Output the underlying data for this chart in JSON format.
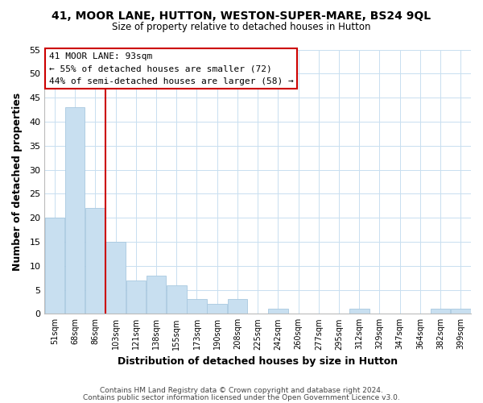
{
  "title": "41, MOOR LANE, HUTTON, WESTON-SUPER-MARE, BS24 9QL",
  "subtitle": "Size of property relative to detached houses in Hutton",
  "xlabel": "Distribution of detached houses by size in Hutton",
  "ylabel": "Number of detached properties",
  "bar_color": "#c8dff0",
  "bar_edge_color": "#a8c8e0",
  "categories": [
    "51sqm",
    "68sqm",
    "86sqm",
    "103sqm",
    "121sqm",
    "138sqm",
    "155sqm",
    "173sqm",
    "190sqm",
    "208sqm",
    "225sqm",
    "242sqm",
    "260sqm",
    "277sqm",
    "295sqm",
    "312sqm",
    "329sqm",
    "347sqm",
    "364sqm",
    "382sqm",
    "399sqm"
  ],
  "values": [
    20,
    43,
    22,
    15,
    7,
    8,
    6,
    3,
    2,
    3,
    0,
    1,
    0,
    0,
    0,
    1,
    0,
    0,
    0,
    1,
    1
  ],
  "ylim": [
    0,
    55
  ],
  "yticks": [
    0,
    5,
    10,
    15,
    20,
    25,
    30,
    35,
    40,
    45,
    50,
    55
  ],
  "property_line_label": "41 MOOR LANE: 93sqm",
  "annotation_line1": "← 55% of detached houses are smaller (72)",
  "annotation_line2": "44% of semi-detached houses are larger (58) →",
  "annotation_box_edge_color": "#cc0000",
  "property_line_color": "#cc0000",
  "footer1": "Contains HM Land Registry data © Crown copyright and database right 2024.",
  "footer2": "Contains public sector information licensed under the Open Government Licence v3.0.",
  "background_color": "#ffffff",
  "grid_color": "#c8dff0"
}
